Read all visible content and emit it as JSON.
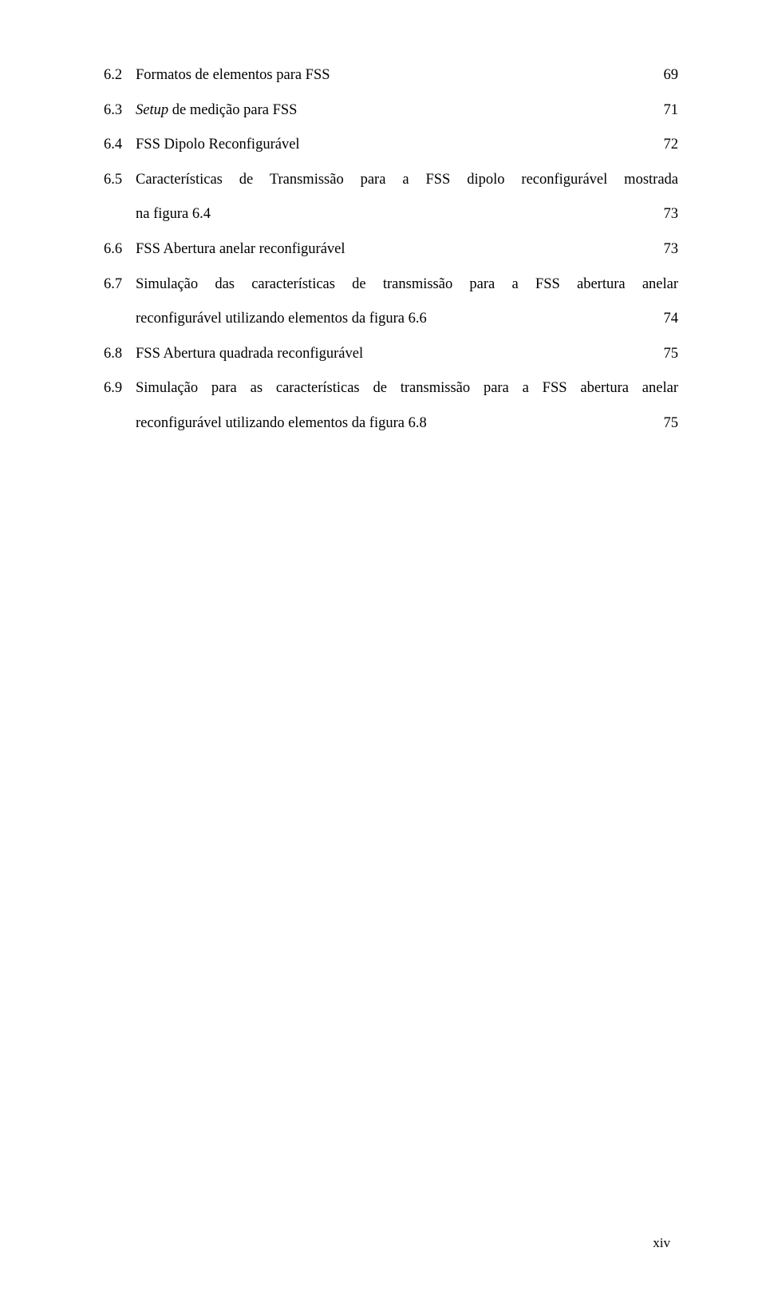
{
  "entries": [
    {
      "id": "e62",
      "number": "6.2",
      "text": "Formatos de elementos para FSS",
      "page": "69",
      "italic": false,
      "multiline": false
    },
    {
      "id": "e63",
      "number": "6.3",
      "italic_text": "Setup",
      "text": " de medição para FSS",
      "page": "71",
      "italic": true,
      "multiline": false
    },
    {
      "id": "e64",
      "number": "6.4",
      "text": "FSS Dipolo Reconfigurável",
      "page": "72",
      "italic": false,
      "multiline": false
    },
    {
      "id": "e65",
      "number": "6.5",
      "text_line1": "Características de Transmissão para a FSS dipolo reconfigurável mostrada",
      "text_line2": "na figura 6.4",
      "page": "73",
      "multiline": true
    },
    {
      "id": "e66",
      "number": "6.6",
      "text": "FSS Abertura anelar reconfigurável",
      "page": "73",
      "italic": false,
      "multiline": false
    },
    {
      "id": "e67",
      "number": "6.7",
      "text_line1": "Simulação das características de transmissão para a FSS abertura anelar",
      "text_line2": "reconfigurável utilizando elementos da figura 6.6",
      "page": "74",
      "multiline": true
    },
    {
      "id": "e68",
      "number": "6.8",
      "text": "FSS Abertura quadrada reconfigurável",
      "page": "75",
      "italic": false,
      "multiline": false
    },
    {
      "id": "e69",
      "number": "6.9",
      "text_line1": "Simulação para as características de transmissão para a FSS abertura anelar",
      "text_line2": "reconfigurável utilizando elementos da figura 6.8",
      "page": "75",
      "multiline": true
    }
  ],
  "page_footer": "xiv"
}
